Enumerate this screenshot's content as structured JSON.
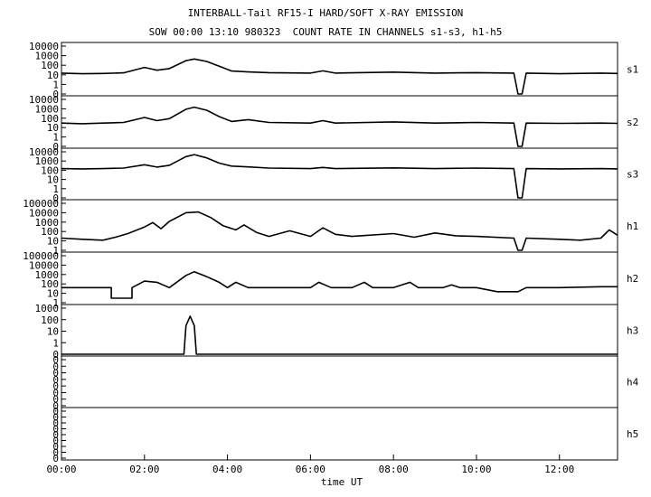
{
  "chart_data": {
    "type": "line",
    "title": "INTERBALL-Tail RF15-I HARD/SOFT X-RAY EMISSION",
    "subtitle": "SOW 00:00 13:10 980323  COUNT RATE IN CHANNELS s1-s3, h1-h5",
    "xlabel": "time UT",
    "x_ticks": [
      "00:00",
      "02:00",
      "04:00",
      "06:00",
      "08:00",
      "10:00",
      "12:00"
    ],
    "x_range_hours": [
      0,
      13.4
    ],
    "grid": false,
    "panels": [
      {
        "name": "s1",
        "y_ticks": [
          "10000",
          "1000",
          "100",
          "10",
          "1",
          "0"
        ],
        "series": [
          [
            0,
            15
          ],
          [
            0.5,
            13
          ],
          [
            1,
            14
          ],
          [
            1.5,
            16
          ],
          [
            2,
            60
          ],
          [
            2.3,
            30
          ],
          [
            2.6,
            45
          ],
          [
            3,
            300
          ],
          [
            3.2,
            450
          ],
          [
            3.5,
            250
          ],
          [
            3.8,
            80
          ],
          [
            4.1,
            25
          ],
          [
            4.5,
            20
          ],
          [
            5,
            17
          ],
          [
            6,
            15
          ],
          [
            6.3,
            26
          ],
          [
            6.6,
            15
          ],
          [
            8,
            19
          ],
          [
            9,
            15
          ],
          [
            10,
            17
          ],
          [
            10.9,
            15
          ],
          [
            11,
            0
          ],
          [
            11.1,
            0
          ],
          [
            11.2,
            15
          ],
          [
            12,
            13
          ],
          [
            13,
            15
          ],
          [
            13.4,
            14
          ]
        ]
      },
      {
        "name": "s2",
        "y_ticks": [
          "10000",
          "1000",
          "100",
          "10",
          "1",
          "0"
        ],
        "series": [
          [
            0,
            30
          ],
          [
            0.5,
            26
          ],
          [
            1,
            30
          ],
          [
            1.5,
            35
          ],
          [
            2,
            120
          ],
          [
            2.3,
            55
          ],
          [
            2.6,
            90
          ],
          [
            3,
            900
          ],
          [
            3.2,
            1500
          ],
          [
            3.5,
            700
          ],
          [
            3.8,
            150
          ],
          [
            4.1,
            45
          ],
          [
            4.5,
            70
          ],
          [
            5,
            35
          ],
          [
            6,
            30
          ],
          [
            6.3,
            55
          ],
          [
            6.6,
            30
          ],
          [
            8,
            40
          ],
          [
            9,
            30
          ],
          [
            10,
            35
          ],
          [
            10.9,
            30
          ],
          [
            11,
            0
          ],
          [
            11.1,
            0
          ],
          [
            11.2,
            30
          ],
          [
            12,
            28
          ],
          [
            13,
            30
          ],
          [
            13.4,
            28
          ]
        ]
      },
      {
        "name": "s3",
        "y_ticks": [
          "10000",
          "1000",
          "100",
          "10",
          "1",
          "0"
        ],
        "series": [
          [
            0,
            150
          ],
          [
            0.5,
            140
          ],
          [
            1,
            150
          ],
          [
            1.5,
            170
          ],
          [
            2,
            400
          ],
          [
            2.3,
            220
          ],
          [
            2.6,
            350
          ],
          [
            3,
            3000
          ],
          [
            3.2,
            5000
          ],
          [
            3.5,
            2200
          ],
          [
            3.8,
            600
          ],
          [
            4.1,
            280
          ],
          [
            4.5,
            230
          ],
          [
            5,
            170
          ],
          [
            6,
            150
          ],
          [
            6.3,
            200
          ],
          [
            6.6,
            150
          ],
          [
            8,
            180
          ],
          [
            9,
            150
          ],
          [
            10,
            170
          ],
          [
            10.9,
            150
          ],
          [
            11,
            0
          ],
          [
            11.1,
            0
          ],
          [
            11.2,
            150
          ],
          [
            12,
            140
          ],
          [
            13,
            150
          ],
          [
            13.4,
            140
          ]
        ]
      },
      {
        "name": "h1",
        "y_ticks": [
          "100000",
          "10000",
          "1000",
          "100",
          "10",
          "1"
        ],
        "series": [
          [
            0,
            20
          ],
          [
            0.5,
            15
          ],
          [
            1,
            12
          ],
          [
            1.3,
            25
          ],
          [
            1.6,
            60
          ],
          [
            2,
            300
          ],
          [
            2.2,
            900
          ],
          [
            2.4,
            200
          ],
          [
            2.6,
            1200
          ],
          [
            3,
            10000
          ],
          [
            3.3,
            12000
          ],
          [
            3.6,
            3000
          ],
          [
            3.9,
            400
          ],
          [
            4.2,
            150
          ],
          [
            4.4,
            500
          ],
          [
            4.7,
            80
          ],
          [
            5,
            30
          ],
          [
            5.5,
            120
          ],
          [
            6,
            30
          ],
          [
            6.3,
            250
          ],
          [
            6.6,
            50
          ],
          [
            7,
            30
          ],
          [
            8,
            60
          ],
          [
            8.5,
            25
          ],
          [
            9,
            70
          ],
          [
            9.5,
            35
          ],
          [
            10,
            30
          ],
          [
            10.9,
            20
          ],
          [
            11,
            1
          ],
          [
            11.1,
            1
          ],
          [
            11.2,
            20
          ],
          [
            12,
            15
          ],
          [
            12.5,
            12
          ],
          [
            13,
            20
          ],
          [
            13.2,
            150
          ],
          [
            13.4,
            40
          ]
        ]
      },
      {
        "name": "h2",
        "y_ticks": [
          "100000",
          "10000",
          "1000",
          "100",
          "10",
          "1"
        ],
        "series": [
          [
            0,
            40
          ],
          [
            1.2,
            40
          ],
          [
            1.2,
            3
          ],
          [
            1.7,
            3
          ],
          [
            1.7,
            40
          ],
          [
            2,
            200
          ],
          [
            2.3,
            150
          ],
          [
            2.6,
            40
          ],
          [
            3,
            800
          ],
          [
            3.2,
            2000
          ],
          [
            3.5,
            600
          ],
          [
            3.8,
            150
          ],
          [
            4,
            40
          ],
          [
            4.2,
            150
          ],
          [
            4.5,
            40
          ],
          [
            5,
            40
          ],
          [
            5.5,
            40
          ],
          [
            6,
            40
          ],
          [
            6.2,
            150
          ],
          [
            6.5,
            40
          ],
          [
            7,
            40
          ],
          [
            7.3,
            150
          ],
          [
            7.5,
            40
          ],
          [
            8,
            40
          ],
          [
            8.4,
            150
          ],
          [
            8.6,
            40
          ],
          [
            9.2,
            40
          ],
          [
            9.4,
            80
          ],
          [
            9.6,
            40
          ],
          [
            10,
            40
          ],
          [
            10.5,
            15
          ],
          [
            11,
            15
          ],
          [
            11.2,
            40
          ],
          [
            12,
            40
          ],
          [
            13,
            50
          ],
          [
            13.4,
            50
          ]
        ]
      },
      {
        "name": "h3",
        "y_ticks": [
          "1000",
          "100",
          "10",
          "1",
          "0"
        ],
        "series": [
          [
            0,
            0
          ],
          [
            2.95,
            0
          ],
          [
            3.0,
            30
          ],
          [
            3.1,
            200
          ],
          [
            3.2,
            30
          ],
          [
            3.25,
            0
          ],
          [
            13.4,
            0
          ]
        ]
      },
      {
        "name": "h4",
        "y_ticks": [
          "0",
          "0",
          "0",
          "0",
          "0",
          "0",
          "0",
          "0"
        ],
        "series": []
      },
      {
        "name": "h5",
        "y_ticks": [
          "0",
          "0",
          "0",
          "0",
          "0",
          "0",
          "0",
          "0",
          "0"
        ],
        "series": []
      }
    ]
  }
}
